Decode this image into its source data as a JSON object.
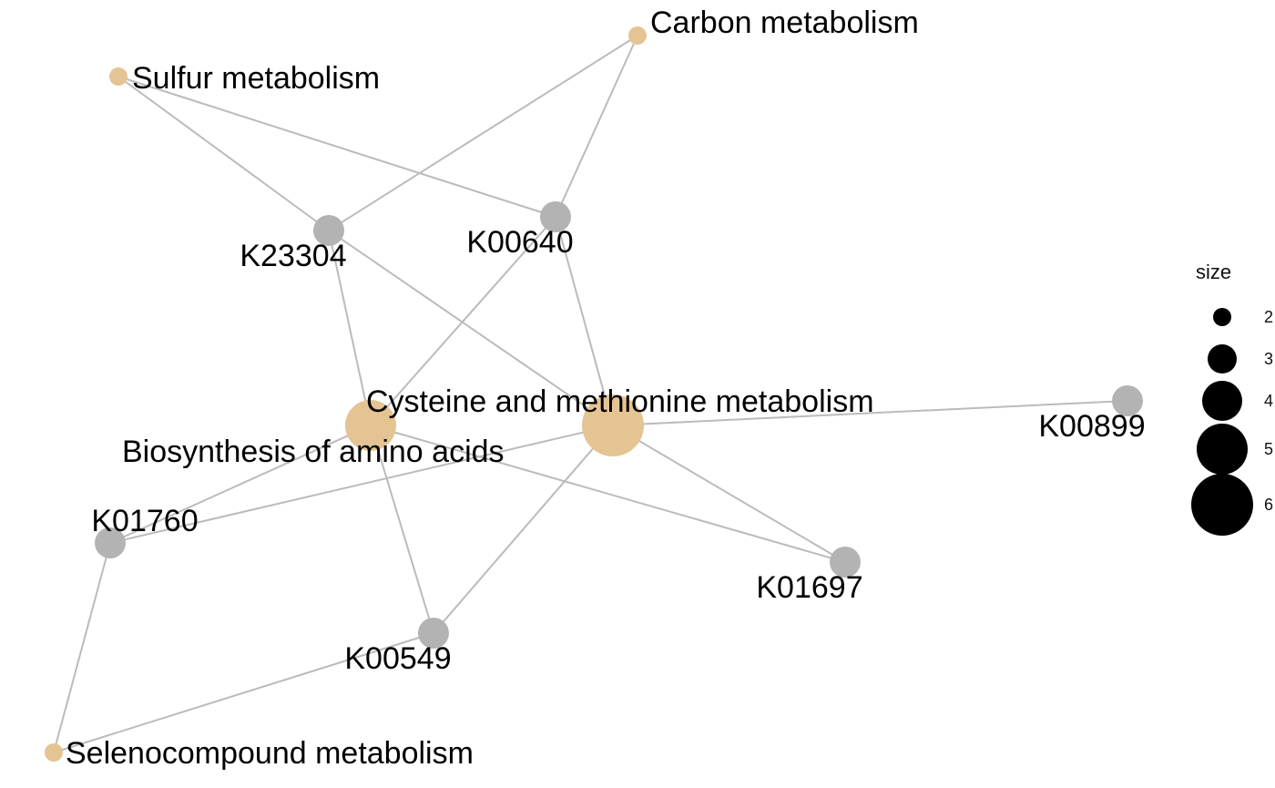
{
  "colors": {
    "pathway": "#e5c494",
    "gene": "#b3b3b3",
    "edge": "#bbbbbb",
    "legend_dot": "#000000"
  },
  "nodes": [
    {
      "id": "carbon",
      "label": "Carbon metabolism",
      "kind": "pathway",
      "size": 2
    },
    {
      "id": "sulfur",
      "label": "Sulfur metabolism",
      "kind": "pathway",
      "size": 2
    },
    {
      "id": "cysteine",
      "label": "Cysteine and methionine metabolism",
      "kind": "pathway",
      "size": 6
    },
    {
      "id": "biosynthesis",
      "label": "Biosynthesis of amino acids",
      "kind": "pathway",
      "size": 5
    },
    {
      "id": "seleno",
      "label": "Selenocompound metabolism",
      "kind": "pathway",
      "size": 2
    },
    {
      "id": "K23304",
      "label": "K23304",
      "kind": "gene"
    },
    {
      "id": "K00640",
      "label": "K00640",
      "kind": "gene"
    },
    {
      "id": "K00899",
      "label": "K00899",
      "kind": "gene"
    },
    {
      "id": "K01760",
      "label": "K01760",
      "kind": "gene"
    },
    {
      "id": "K01697",
      "label": "K01697",
      "kind": "gene"
    },
    {
      "id": "K00549",
      "label": "K00549",
      "kind": "gene"
    }
  ],
  "edges": [
    [
      "carbon",
      "K23304"
    ],
    [
      "carbon",
      "K00640"
    ],
    [
      "sulfur",
      "K23304"
    ],
    [
      "sulfur",
      "K00640"
    ],
    [
      "K23304",
      "biosynthesis"
    ],
    [
      "K23304",
      "cysteine"
    ],
    [
      "K00640",
      "biosynthesis"
    ],
    [
      "K00640",
      "cysteine"
    ],
    [
      "cysteine",
      "K00899"
    ],
    [
      "cysteine",
      "K01760"
    ],
    [
      "cysteine",
      "K01697"
    ],
    [
      "cysteine",
      "K00549"
    ],
    [
      "biosynthesis",
      "K01760"
    ],
    [
      "biosynthesis",
      "K01697"
    ],
    [
      "biosynthesis",
      "K00549"
    ],
    [
      "K01760",
      "seleno"
    ],
    [
      "K00549",
      "seleno"
    ]
  ],
  "legend": {
    "title": "size",
    "items": [
      {
        "value": 2,
        "label": "2"
      },
      {
        "value": 3,
        "label": "3"
      },
      {
        "value": 4,
        "label": "4"
      },
      {
        "value": 5,
        "label": "5"
      },
      {
        "value": 6,
        "label": "6"
      }
    ]
  }
}
